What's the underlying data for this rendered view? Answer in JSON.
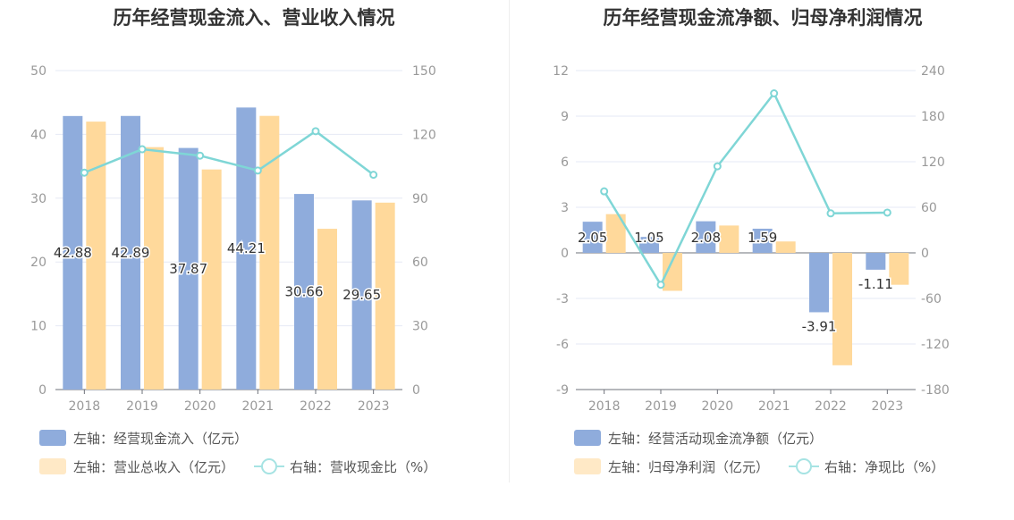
{
  "colors": {
    "blue": "#8facdc",
    "orange": "#ffd99b",
    "line": "#7fd6d6",
    "axis_text": "#999999",
    "grid": "#e6e9f4"
  },
  "chart_data": [
    {
      "type": "bar",
      "title": "历年经营现金流入、营业收入情况",
      "categories": [
        "2018",
        "2019",
        "2020",
        "2021",
        "2022",
        "2023"
      ],
      "y_left_ticks": [
        "0",
        "10",
        "20",
        "30",
        "40",
        "50"
      ],
      "y_right_ticks": [
        "0",
        "30",
        "60",
        "90",
        "120",
        "150"
      ],
      "ylim_left": [
        0,
        50
      ],
      "ylim_right": [
        0,
        150
      ],
      "series": [
        {
          "name": "左轴：经营现金流入（亿元）",
          "axis": "left",
          "kind": "bar",
          "color": "#8facdc",
          "values": [
            42.88,
            42.89,
            37.87,
            44.21,
            30.66,
            29.65
          ],
          "labels": [
            "42.88",
            "42.89",
            "37.87",
            "44.21",
            "30.66",
            "29.65"
          ]
        },
        {
          "name": "左轴：营业总收入（亿元）",
          "axis": "left",
          "kind": "bar",
          "color": "#ffd99b",
          "values": [
            42.0,
            38.0,
            34.5,
            42.9,
            25.2,
            29.3
          ]
        },
        {
          "name": "右轴：营收现金比（%）",
          "axis": "right",
          "kind": "line",
          "color": "#7fd6d6",
          "values": [
            102.0,
            113.0,
            110.0,
            103.0,
            121.5,
            101.0
          ]
        }
      ],
      "grid": true
    },
    {
      "type": "bar",
      "title": "历年经营现金流净额、归母净利润情况",
      "categories": [
        "2018",
        "2019",
        "2020",
        "2021",
        "2022",
        "2023"
      ],
      "y_left_ticks": [
        "-9",
        "-6",
        "-3",
        "0",
        "3",
        "6",
        "9",
        "12"
      ],
      "y_right_ticks": [
        "-180",
        "-120",
        "-60",
        "0",
        "60",
        "120",
        "180",
        "240"
      ],
      "ylim_left": [
        -9,
        12
      ],
      "ylim_right": [
        -180,
        240
      ],
      "series": [
        {
          "name": "左轴：经营活动现金流净额（亿元）",
          "axis": "left",
          "kind": "bar",
          "color": "#8facdc",
          "values": [
            2.05,
            1.05,
            2.08,
            1.59,
            -3.91,
            -1.11
          ],
          "labels": [
            "2.05",
            "1.05",
            "2.08",
            "1.59",
            "-3.91",
            "-1.11"
          ]
        },
        {
          "name": "左轴：归母净利润（亿元）",
          "axis": "left",
          "kind": "bar",
          "color": "#ffd99b",
          "values": [
            2.55,
            -2.5,
            1.8,
            0.75,
            -7.4,
            -2.1
          ]
        },
        {
          "name": "右轴：净现比（%）",
          "axis": "right",
          "kind": "line",
          "color": "#7fd6d6",
          "values": [
            81.0,
            -42.0,
            114.0,
            210.0,
            52.0,
            53.0
          ]
        }
      ],
      "grid": true
    }
  ]
}
